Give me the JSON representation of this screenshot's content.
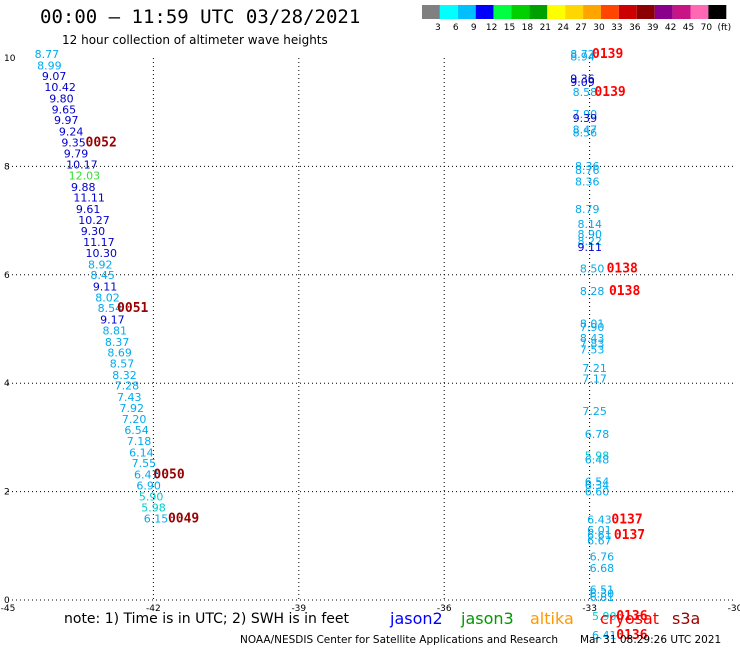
{
  "header": {
    "title": "00:00 – 11:59 UTC 03/28/2021",
    "subtitle": "12 hour collection of altimeter wave heights"
  },
  "colorbar": {
    "labels": [
      "3",
      "6",
      "9",
      "12",
      "15",
      "18",
      "21",
      "24",
      "27",
      "30",
      "33",
      "36",
      "39",
      "42",
      "45",
      "70",
      "(ft)"
    ],
    "colors": [
      "#808080",
      "#00ffff",
      "#00bfff",
      "#0000ff",
      "#00ff40",
      "#00d000",
      "#00a000",
      "#ffff00",
      "#ffd700",
      "#ffa500",
      "#ff4500",
      "#cc0000",
      "#8b0000",
      "#8b008b",
      "#c71585",
      "#ff69b4",
      "#000000"
    ]
  },
  "footer": {
    "note": "note: 1) Time is in UTC; 2) SWH is in feet",
    "legend": [
      {
        "label": "jason2",
        "color": "#0000ff"
      },
      {
        "label": "jason3",
        "color": "#009900"
      },
      {
        "label": "altika",
        "color": "#ff9900"
      },
      {
        "label": "cryosat",
        "color": "#ff0000"
      },
      {
        "label": "s3a",
        "color": "#990000"
      }
    ],
    "credit": "NOAA/NESDIS Center for Satellite Applications and Research",
    "timestamp": "Mar 31 08:29:26 UTC 2021"
  },
  "chart_data": {
    "type": "scatter",
    "xlim": [
      -45,
      -30
    ],
    "ylim": [
      0,
      10
    ],
    "xticks": [
      "-45",
      "-42",
      "-39",
      "-36",
      "-33",
      "-30"
    ],
    "xtick_values": [
      -45,
      -42,
      -39,
      -36,
      -33,
      -30
    ],
    "yticks": [
      "0",
      "2",
      "4",
      "6",
      "8",
      "10"
    ],
    "ytick_values": [
      0,
      2,
      4,
      6,
      8,
      10
    ],
    "grid": true,
    "track_left": [
      {
        "x": -44.45,
        "y": 10.0,
        "label": "8.77",
        "color": "#00aaee"
      },
      {
        "x": -44.4,
        "y": 9.79,
        "label": "8.99",
        "color": "#00aaee"
      },
      {
        "x": -44.3,
        "y": 9.59,
        "label": "9.07",
        "color": "#0000cc"
      },
      {
        "x": -44.25,
        "y": 9.39,
        "label": "10.42",
        "color": "#0000cc"
      },
      {
        "x": -44.15,
        "y": 9.18,
        "label": "9.80",
        "color": "#0000cc"
      },
      {
        "x": -44.1,
        "y": 8.98,
        "label": "9.65",
        "color": "#0000cc"
      },
      {
        "x": -44.05,
        "y": 8.78,
        "label": "9.97",
        "color": "#0000cc"
      },
      {
        "x": -43.95,
        "y": 8.57,
        "label": "9.24",
        "color": "#0000cc"
      },
      {
        "x": -43.9,
        "y": 8.37,
        "label": "9.35",
        "color": "#0000cc"
      },
      {
        "x": -43.85,
        "y": 8.16,
        "label": "9.79",
        "color": "#0000cc"
      },
      {
        "x": -43.8,
        "y": 7.96,
        "label": "10.17",
        "color": "#0000cc"
      },
      {
        "x": -43.75,
        "y": 7.76,
        "label": "12.03",
        "color": "#33dd33"
      },
      {
        "x": -43.7,
        "y": 7.55,
        "label": "9.88",
        "color": "#0000cc"
      },
      {
        "x": -43.65,
        "y": 7.35,
        "label": "11.11",
        "color": "#0000cc"
      },
      {
        "x": -43.6,
        "y": 7.14,
        "label": "9.61",
        "color": "#0000cc"
      },
      {
        "x": -43.55,
        "y": 6.94,
        "label": "10.27",
        "color": "#0000cc"
      },
      {
        "x": -43.5,
        "y": 6.73,
        "label": "9.30",
        "color": "#0000cc"
      },
      {
        "x": -43.45,
        "y": 6.53,
        "label": "11.17",
        "color": "#0000cc"
      },
      {
        "x": -43.4,
        "y": 6.33,
        "label": "10.30",
        "color": "#0000cc"
      },
      {
        "x": -43.35,
        "y": 6.12,
        "label": "8.92",
        "color": "#00aaee"
      },
      {
        "x": -43.3,
        "y": 5.92,
        "label": "8.45",
        "color": "#00aaee"
      },
      {
        "x": -43.25,
        "y": 5.71,
        "label": "9.11",
        "color": "#0000cc"
      },
      {
        "x": -43.2,
        "y": 5.51,
        "label": "8.02",
        "color": "#00aaee"
      },
      {
        "x": -43.15,
        "y": 5.31,
        "label": "8.54",
        "color": "#00aaee"
      },
      {
        "x": -43.1,
        "y": 5.1,
        "label": "9.17",
        "color": "#0000cc"
      },
      {
        "x": -43.05,
        "y": 4.9,
        "label": "8.81",
        "color": "#00aaee"
      },
      {
        "x": -43.0,
        "y": 4.69,
        "label": "8.37",
        "color": "#00aaee"
      },
      {
        "x": -42.95,
        "y": 4.49,
        "label": "8.69",
        "color": "#00aaee"
      },
      {
        "x": -42.9,
        "y": 4.29,
        "label": "8.57",
        "color": "#00aaee"
      },
      {
        "x": -42.85,
        "y": 4.08,
        "label": "8.32",
        "color": "#00aaee"
      },
      {
        "x": -42.8,
        "y": 3.88,
        "label": "7.28",
        "color": "#00aaee"
      },
      {
        "x": -42.75,
        "y": 3.67,
        "label": "7.43",
        "color": "#00aaee"
      },
      {
        "x": -42.7,
        "y": 3.47,
        "label": "7.92",
        "color": "#00aaee"
      },
      {
        "x": -42.65,
        "y": 3.27,
        "label": "7.20",
        "color": "#00aaee"
      },
      {
        "x": -42.6,
        "y": 3.06,
        "label": "6.54",
        "color": "#00aaee"
      },
      {
        "x": -42.55,
        "y": 2.86,
        "label": "7.18",
        "color": "#00aaee"
      },
      {
        "x": -42.5,
        "y": 2.65,
        "label": "6.14",
        "color": "#00aaee"
      },
      {
        "x": -42.45,
        "y": 2.45,
        "label": "7.55",
        "color": "#00aaee"
      },
      {
        "x": -42.4,
        "y": 2.24,
        "label": "6.47",
        "color": "#00aaee"
      },
      {
        "x": -42.35,
        "y": 2.04,
        "label": "6.90",
        "color": "#00aaee"
      },
      {
        "x": -42.3,
        "y": 1.84,
        "label": "5.90",
        "color": "#00cccc"
      },
      {
        "x": -42.25,
        "y": 1.63,
        "label": "5.98",
        "color": "#00cccc"
      },
      {
        "x": -42.2,
        "y": 1.43,
        "label": "6.15",
        "color": "#00aaee"
      }
    ],
    "track_right": [
      {
        "x": -33.4,
        "y": 10.0,
        "label": "8.72",
        "color": "#00aaee"
      },
      {
        "x": -33.4,
        "y": 9.95,
        "label": "8.94",
        "color": "#00aaee"
      },
      {
        "x": -33.4,
        "y": 9.55,
        "label": "9.36",
        "color": "#0000cc"
      },
      {
        "x": -33.4,
        "y": 9.48,
        "label": "9.09",
        "color": "#0000cc"
      },
      {
        "x": -33.35,
        "y": 9.3,
        "label": "8.58",
        "color": "#00aaee"
      },
      {
        "x": -33.35,
        "y": 8.89,
        "label": "7.90",
        "color": "#00aaee"
      },
      {
        "x": -33.35,
        "y": 8.82,
        "label": "9.39",
        "color": "#0000cc"
      },
      {
        "x": -33.35,
        "y": 8.61,
        "label": "8.47",
        "color": "#00aaee"
      },
      {
        "x": -33.35,
        "y": 8.55,
        "label": "8.56",
        "color": "#00aaee"
      },
      {
        "x": -33.3,
        "y": 7.93,
        "label": "8.36",
        "color": "#00aaee"
      },
      {
        "x": -33.3,
        "y": 7.86,
        "label": "8.76",
        "color": "#00aaee"
      },
      {
        "x": -33.3,
        "y": 7.65,
        "label": "8.36",
        "color": "#00aaee"
      },
      {
        "x": -33.3,
        "y": 7.14,
        "label": "8.79",
        "color": "#00aaee"
      },
      {
        "x": -33.25,
        "y": 6.86,
        "label": "8.14",
        "color": "#00aaee"
      },
      {
        "x": -33.25,
        "y": 6.68,
        "label": "8.90",
        "color": "#00aaee"
      },
      {
        "x": -33.25,
        "y": 6.55,
        "label": "8.22",
        "color": "#00aaee"
      },
      {
        "x": -33.25,
        "y": 6.44,
        "label": "9.11",
        "color": "#0000cc"
      },
      {
        "x": -33.2,
        "y": 6.04,
        "label": "8.50",
        "color": "#00aaee"
      },
      {
        "x": -33.2,
        "y": 5.63,
        "label": "8.28",
        "color": "#00aaee"
      },
      {
        "x": -33.2,
        "y": 5.03,
        "label": "8.01",
        "color": "#00aaee"
      },
      {
        "x": -33.2,
        "y": 4.96,
        "label": "7.90",
        "color": "#00aaee"
      },
      {
        "x": -33.2,
        "y": 4.76,
        "label": "8.43",
        "color": "#00aaee"
      },
      {
        "x": -33.2,
        "y": 4.66,
        "label": "7.83",
        "color": "#00aaee"
      },
      {
        "x": -33.2,
        "y": 4.55,
        "label": "7.53",
        "color": "#00aaee"
      },
      {
        "x": -33.15,
        "y": 4.21,
        "label": "7.21",
        "color": "#00aaee"
      },
      {
        "x": -33.15,
        "y": 4.01,
        "label": "7.17",
        "color": "#00aaee"
      },
      {
        "x": -33.15,
        "y": 3.41,
        "label": "7.25",
        "color": "#00aaee"
      },
      {
        "x": -33.1,
        "y": 2.99,
        "label": "6.78",
        "color": "#00aaee"
      },
      {
        "x": -33.1,
        "y": 2.59,
        "label": "5.98",
        "color": "#00cccc"
      },
      {
        "x": -33.1,
        "y": 2.52,
        "label": "6.48",
        "color": "#00aaee"
      },
      {
        "x": -33.1,
        "y": 2.11,
        "label": "6.54",
        "color": "#00aaee"
      },
      {
        "x": -33.1,
        "y": 2.05,
        "label": "6.34",
        "color": "#00aaee"
      },
      {
        "x": -33.1,
        "y": 1.93,
        "label": "6.60",
        "color": "#00aaee"
      },
      {
        "x": -33.05,
        "y": 1.41,
        "label": "6.43",
        "color": "#00aaee"
      },
      {
        "x": -33.05,
        "y": 1.22,
        "label": "6.01",
        "color": "#00aaee"
      },
      {
        "x": -33.05,
        "y": 1.13,
        "label": "6.61",
        "color": "#00aaee"
      },
      {
        "x": -33.05,
        "y": 1.02,
        "label": "6.67",
        "color": "#00aaee"
      },
      {
        "x": -33.0,
        "y": 0.73,
        "label": "6.76",
        "color": "#00aaee"
      },
      {
        "x": -33.0,
        "y": 0.52,
        "label": "6.68",
        "color": "#00aaee"
      },
      {
        "x": -33.0,
        "y": 0.12,
        "label": "6.51",
        "color": "#00aaee"
      },
      {
        "x": -33.0,
        "y": 0.05,
        "label": "6.30",
        "color": "#00aaee"
      },
      {
        "x": -33.0,
        "y": -0.02,
        "label": "6.81",
        "color": "#00aaee"
      },
      {
        "x": -32.95,
        "y": -0.37,
        "label": "5.90",
        "color": "#00cccc"
      },
      {
        "x": -32.95,
        "y": -0.72,
        "label": "6.41",
        "color": "#00aaee"
      }
    ],
    "pass_labels": [
      {
        "x": -43.4,
        "y": 8.37,
        "label": "0052",
        "color": "#990000"
      },
      {
        "x": -42.75,
        "y": 5.31,
        "label": "0051",
        "color": "#990000"
      },
      {
        "x": -42.0,
        "y": 2.24,
        "label": "0050",
        "color": "#990000"
      },
      {
        "x": -41.7,
        "y": 1.43,
        "label": "0049",
        "color": "#990000"
      },
      {
        "x": -32.95,
        "y": 10.0,
        "label": "0139",
        "color": "#ff0000"
      },
      {
        "x": -32.9,
        "y": 9.3,
        "label": "0139",
        "color": "#ff0000"
      },
      {
        "x": -32.65,
        "y": 6.04,
        "label": "0138",
        "color": "#ff0000"
      },
      {
        "x": -32.6,
        "y": 5.63,
        "label": "0138",
        "color": "#ff0000"
      },
      {
        "x": -32.55,
        "y": 1.41,
        "label": "0137",
        "color": "#ff0000"
      },
      {
        "x": -32.5,
        "y": 1.13,
        "label": "0137",
        "color": "#ff0000"
      },
      {
        "x": -32.45,
        "y": -0.37,
        "label": "0136",
        "color": "#ff0000"
      },
      {
        "x": -32.45,
        "y": -0.72,
        "label": "0136",
        "color": "#ff0000"
      }
    ]
  }
}
